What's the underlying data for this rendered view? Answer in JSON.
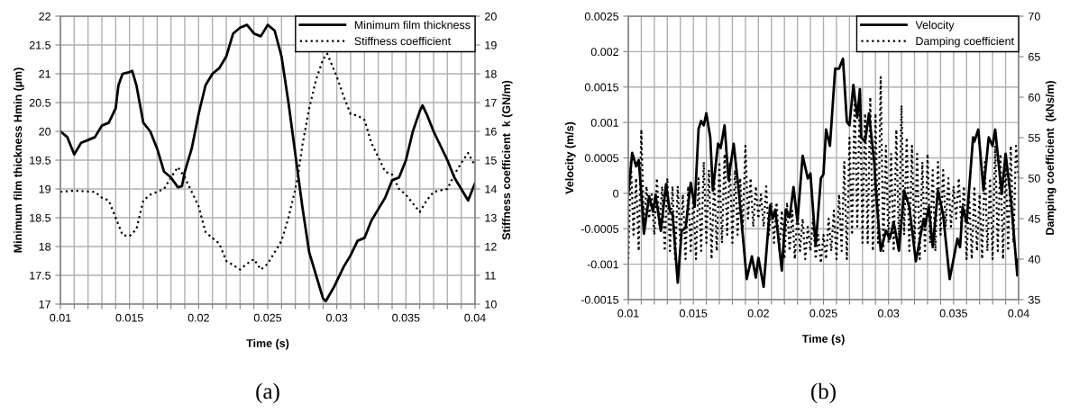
{
  "chart_data": [
    {
      "type": "line",
      "xlabel": "Time (s)",
      "ylabel": "Minimum film thickness Hmin (µm)",
      "y2label": "Stiffness coefficient  k (GN/m)",
      "annotations": [
        "(a)"
      ],
      "xlim": [
        0.01,
        0.04
      ],
      "xticks": [
        0.01,
        {
          "value": 0.011,
          "label": null
        },
        {
          "value": 0.012,
          "label": null
        },
        {
          "value": 0.013,
          "label": null
        },
        {
          "value": 0.014,
          "label": null
        },
        0.015,
        {
          "value": 0.016,
          "label": null
        },
        {
          "value": 0.017,
          "label": null
        },
        {
          "value": 0.018,
          "label": null
        },
        {
          "value": 0.019,
          "label": null
        },
        0.02,
        {
          "value": 0.021,
          "label": null
        },
        {
          "value": 0.022,
          "label": null
        },
        {
          "value": 0.023,
          "label": null
        },
        {
          "value": 0.024,
          "label": null
        },
        0.025,
        {
          "value": 0.026,
          "label": null
        },
        {
          "value": 0.027,
          "label": null
        },
        {
          "value": 0.028,
          "label": null
        },
        {
          "value": 0.029,
          "label": null
        },
        0.03,
        {
          "value": 0.031,
          "label": null
        },
        {
          "value": 0.032,
          "label": null
        },
        {
          "value": 0.033,
          "label": null
        },
        {
          "value": 0.034,
          "label": null
        },
        0.035,
        {
          "value": 0.036,
          "label": null
        },
        {
          "value": 0.037,
          "label": null
        },
        {
          "value": 0.038,
          "label": null
        },
        {
          "value": 0.039,
          "label": null
        },
        0.04
      ],
      "ylim": [
        17,
        22
      ],
      "yticks": [
        17,
        17.5,
        18,
        18.5,
        19,
        19.5,
        20,
        20.5,
        21,
        21.5,
        22
      ],
      "y2lim": [
        10,
        20
      ],
      "y2ticks": [
        10,
        11,
        12,
        13,
        14,
        15,
        16,
        17,
        18,
        19,
        20
      ],
      "grid": true,
      "legend": "top right",
      "series": [
        {
          "name": "Minimum film thickness",
          "color": "#000000",
          "line_style": "solid",
          "x": [
            0.01,
            0.0105,
            0.011,
            0.0115,
            0.012,
            0.0125,
            0.013,
            0.0135,
            0.014,
            0.0142,
            0.0145,
            0.015,
            0.0152,
            0.0155,
            0.016,
            0.0165,
            0.017,
            0.0175,
            0.018,
            0.0185,
            0.0188,
            0.019,
            0.0195,
            0.02,
            0.0205,
            0.021,
            0.0215,
            0.022,
            0.0225,
            0.023,
            0.0235,
            0.024,
            0.0245,
            0.025,
            0.0255,
            0.026,
            0.0265,
            0.027,
            0.0275,
            0.028,
            0.0285,
            0.029,
            0.0292,
            0.0298,
            0.03,
            0.0305,
            0.031,
            0.0315,
            0.032,
            0.0325,
            0.033,
            0.0335,
            0.034,
            0.0345,
            0.035,
            0.0355,
            0.036,
            0.0362,
            0.0365,
            0.037,
            0.0375,
            0.038,
            0.0385,
            0.039,
            0.0395,
            0.04
          ],
          "values": [
            20.0,
            19.9,
            19.6,
            19.8,
            19.85,
            19.9,
            20.1,
            20.15,
            20.4,
            20.8,
            21.0,
            21.03,
            21.05,
            20.8,
            20.15,
            20.0,
            19.7,
            19.3,
            19.2,
            19.03,
            19.05,
            19.3,
            19.7,
            20.3,
            20.8,
            21.0,
            21.1,
            21.3,
            21.7,
            21.8,
            21.85,
            21.7,
            21.65,
            21.85,
            21.75,
            21.3,
            20.5,
            19.6,
            18.7,
            17.9,
            17.5,
            17.1,
            17.05,
            17.3,
            17.4,
            17.65,
            17.85,
            18.1,
            18.15,
            18.45,
            18.65,
            18.85,
            19.15,
            19.2,
            19.5,
            20.0,
            20.35,
            20.45,
            20.3,
            20.0,
            19.75,
            19.5,
            19.2,
            19.0,
            18.8,
            19.1
          ]
        },
        {
          "name": "Stiffness coefficient",
          "color": "#000000",
          "line_style": "dotted",
          "axis": "y2",
          "x": [
            0.01,
            0.011,
            0.0125,
            0.013,
            0.0135,
            0.014,
            0.0145,
            0.015,
            0.0155,
            0.016,
            0.0165,
            0.017,
            0.0175,
            0.018,
            0.0185,
            0.019,
            0.0195,
            0.02,
            0.0205,
            0.021,
            0.0215,
            0.022,
            0.0225,
            0.023,
            0.0235,
            0.024,
            0.0245,
            0.025,
            0.026,
            0.0265,
            0.027,
            0.0272,
            0.0275,
            0.028,
            0.0285,
            0.029,
            0.0293,
            0.03,
            0.0305,
            0.031,
            0.0315,
            0.032,
            0.0325,
            0.033,
            0.0335,
            0.034,
            0.0345,
            0.035,
            0.0355,
            0.036,
            0.0365,
            0.037,
            0.0375,
            0.038,
            0.0385,
            0.039,
            0.0395,
            0.04
          ],
          "values": [
            13.9,
            13.94,
            13.9,
            13.7,
            13.6,
            13.0,
            12.4,
            12.36,
            12.6,
            13.6,
            13.8,
            13.9,
            14.0,
            14.4,
            14.76,
            14.4,
            13.9,
            13.4,
            12.5,
            12.3,
            12.1,
            11.5,
            11.36,
            11.2,
            11.4,
            11.56,
            11.2,
            11.4,
            12.2,
            13.0,
            14.0,
            14.5,
            15.5,
            16.8,
            17.8,
            18.5,
            18.7,
            17.9,
            17.2,
            16.6,
            16.55,
            16.4,
            15.6,
            15.1,
            14.6,
            14.5,
            14.0,
            13.8,
            13.5,
            13.2,
            13.6,
            13.9,
            13.95,
            14.0,
            14.5,
            14.9,
            15.25,
            14.8
          ]
        }
      ]
    },
    {
      "type": "line",
      "xlabel": "Time (s)",
      "ylabel": "Velocity (m/s)",
      "y2label": "Damping coefficient  (kNs/m)",
      "annotations": [
        "(b)"
      ],
      "xlim": [
        0.01,
        0.04
      ],
      "xticks": [
        0.01,
        {
          "value": 0.011,
          "label": null
        },
        {
          "value": 0.012,
          "label": null
        },
        {
          "value": 0.013,
          "label": null
        },
        {
          "value": 0.014,
          "label": null
        },
        0.015,
        {
          "value": 0.016,
          "label": null
        },
        {
          "value": 0.017,
          "label": null
        },
        {
          "value": 0.018,
          "label": null
        },
        {
          "value": 0.019,
          "label": null
        },
        0.02,
        {
          "value": 0.021,
          "label": null
        },
        {
          "value": 0.022,
          "label": null
        },
        {
          "value": 0.023,
          "label": null
        },
        {
          "value": 0.024,
          "label": null
        },
        0.025,
        {
          "value": 0.026,
          "label": null
        },
        {
          "value": 0.027,
          "label": null
        },
        {
          "value": 0.028,
          "label": null
        },
        {
          "value": 0.029,
          "label": null
        },
        0.03,
        {
          "value": 0.031,
          "label": null
        },
        {
          "value": 0.032,
          "label": null
        },
        {
          "value": 0.033,
          "label": null
        },
        {
          "value": 0.034,
          "label": null
        },
        0.035,
        {
          "value": 0.036,
          "label": null
        },
        {
          "value": 0.037,
          "label": null
        },
        {
          "value": 0.038,
          "label": null
        },
        {
          "value": 0.039,
          "label": null
        },
        0.04
      ],
      "ylim": [
        -0.0015,
        0.0025
      ],
      "yticks": [
        -0.0015,
        -0.001,
        -0.0005,
        0,
        0.0005,
        0.001,
        0.0015,
        0.002,
        0.0025
      ],
      "y2lim": [
        35,
        70
      ],
      "y2ticks": [
        35,
        40,
        45,
        50,
        55,
        60,
        65,
        70
      ],
      "grid": true,
      "legend": "top right",
      "series": [
        {
          "name": "Velocity",
          "color": "#000000",
          "line_style": "solid",
          "x": [
            0.01,
            0.0103,
            0.0106,
            0.0108,
            0.011,
            0.0112,
            0.0116,
            0.0119,
            0.0121,
            0.0125,
            0.0129,
            0.0132,
            0.0134,
            0.0138,
            0.0141,
            0.0144,
            0.0148,
            0.0151,
            0.0154,
            0.0156,
            0.0158,
            0.016,
            0.0163,
            0.0165,
            0.0169,
            0.0171,
            0.0174,
            0.0177,
            0.0181,
            0.0185,
            0.0191,
            0.0195,
            0.0198,
            0.02,
            0.0204,
            0.0209,
            0.0211,
            0.0213,
            0.0218,
            0.0221,
            0.0224,
            0.0227,
            0.023,
            0.0234,
            0.0238,
            0.024,
            0.0244,
            0.0248,
            0.025,
            0.0252,
            0.0255,
            0.0259,
            0.0262,
            0.0265,
            0.0268,
            0.027,
            0.0273,
            0.0276,
            0.0278,
            0.0279,
            0.0282,
            0.0285,
            0.0289,
            0.0291,
            0.0294,
            0.0298,
            0.0301,
            0.0304,
            0.0308,
            0.0312,
            0.0316,
            0.0321,
            0.0327,
            0.0328,
            0.0331,
            0.0334,
            0.0338,
            0.0342,
            0.0347,
            0.0353,
            0.0355,
            0.0357,
            0.036,
            0.0365,
            0.0366,
            0.0369,
            0.0373,
            0.0377,
            0.038,
            0.0382,
            0.0387,
            0.039,
            0.0394,
            0.0399,
            0.04
          ],
          "values": [
            0.0,
            0.00057,
            0.00038,
            0.00047,
            0.0,
            -0.00057,
            -4e-05,
            -0.00026,
            -2e-05,
            -0.00053,
            0.00013,
            -0.00026,
            -0.00028,
            -0.00126,
            -0.00053,
            -0.00049,
            0.00015,
            -0.00019,
            0.00091,
            0.00102,
            0.00096,
            0.00113,
            0.00079,
            4e-05,
            0.0007,
            0.00064,
            0.00096,
            0.00019,
            0.0007,
            2e-05,
            -0.00121,
            -0.00089,
            -0.00119,
            -0.00091,
            -0.00132,
            -0.00017,
            -0.00036,
            -0.00023,
            -0.00109,
            -0.00023,
            -0.00034,
            9e-05,
            -0.0004,
            0.00053,
            0.00021,
            0.00028,
            -0.00074,
            0.00021,
            0.00027,
            0.0009,
            0.00067,
            0.00176,
            0.00176,
            0.0019,
            0.00101,
            0.00096,
            0.00153,
            0.00107,
            0.00147,
            0.00079,
            0.00073,
            0.00113,
            0.00044,
            -0.00013,
            -0.00081,
            -0.00053,
            -0.00064,
            -0.00041,
            -0.00081,
            4e-05,
            -0.00019,
            -0.00096,
            -0.00036,
            -0.00047,
            -0.00019,
            -0.00076,
            4e-05,
            -0.0003,
            -0.00121,
            -0.00064,
            -0.00076,
            -0.00019,
            -0.00041,
            0.00079,
            0.00073,
            0.0009,
            4e-05,
            0.00079,
            0.00067,
            0.0009,
            -1e-05,
            0.00056,
            -7e-05,
            -0.00116,
            -0.00093
          ]
        },
        {
          "name": "Damping coefficient",
          "color": "#000000",
          "line_style": "dotted",
          "axis": "y2",
          "x": [
            0.01,
            0.0102,
            0.0104,
            0.0106,
            0.0108,
            0.011,
            0.0112,
            0.0114,
            0.0116,
            0.0118,
            0.012,
            0.0122,
            0.0124,
            0.0126,
            0.0128,
            0.013,
            0.0132,
            0.0134,
            0.0136,
            0.0138,
            0.014,
            0.0142,
            0.0144,
            0.0146,
            0.0148,
            0.015,
            0.0152,
            0.0154,
            0.0156,
            0.0158,
            0.016,
            0.0162,
            0.0164,
            0.0166,
            0.0168,
            0.017,
            0.0172,
            0.0174,
            0.0176,
            0.0178,
            0.018,
            0.0182,
            0.0184,
            0.0186,
            0.0188,
            0.019,
            0.0192,
            0.0194,
            0.0196,
            0.0198,
            0.02,
            0.0202,
            0.0204,
            0.0206,
            0.0208,
            0.021,
            0.0212,
            0.0214,
            0.0216,
            0.0218,
            0.022,
            0.0222,
            0.0224,
            0.0226,
            0.0228,
            0.023,
            0.0232,
            0.0234,
            0.0236,
            0.0238,
            0.024,
            0.0242,
            0.0244,
            0.0246,
            0.0248,
            0.025,
            0.0252,
            0.0254,
            0.0256,
            0.0258,
            0.026,
            0.0262,
            0.0264,
            0.0266,
            0.0268,
            0.027,
            0.0272,
            0.0274,
            0.0276,
            0.0278,
            0.028,
            0.0282,
            0.0284,
            0.0286,
            0.0288,
            0.029,
            0.0292,
            0.0294,
            0.0296,
            0.0298,
            0.03,
            0.0302,
            0.0304,
            0.0306,
            0.0308,
            0.031,
            0.0312,
            0.0314,
            0.0316,
            0.0318,
            0.032,
            0.0322,
            0.0324,
            0.0326,
            0.0328,
            0.033,
            0.0332,
            0.0334,
            0.0336,
            0.0338,
            0.034,
            0.0342,
            0.0344,
            0.0346,
            0.0348,
            0.035,
            0.0352,
            0.0354,
            0.0356,
            0.0358,
            0.036,
            0.0362,
            0.0364,
            0.0366,
            0.0368,
            0.037,
            0.0372,
            0.0374,
            0.0376,
            0.0378,
            0.038,
            0.0382,
            0.0384,
            0.0386,
            0.0388,
            0.039,
            0.0392,
            0.0394,
            0.0396,
            0.0398,
            0.04
          ],
          "values": [
            40,
            52,
            43,
            50,
            41,
            56,
            44,
            49,
            45,
            48,
            43,
            50,
            44,
            49,
            41,
            50,
            41,
            49,
            40,
            49,
            42,
            48,
            40,
            49,
            41,
            48,
            40,
            50,
            41,
            52,
            42,
            51,
            40,
            50,
            41,
            52,
            42,
            53,
            43,
            52,
            42,
            51,
            43,
            50,
            44,
            54,
            45,
            50,
            44,
            49,
            45,
            48,
            44,
            49,
            43,
            47,
            42,
            47,
            41,
            46,
            40,
            47,
            41,
            46,
            40,
            46,
            41,
            45,
            40,
            44,
            41,
            45,
            40,
            43,
            39.5,
            43,
            40,
            45,
            41,
            46,
            40,
            48,
            41,
            52,
            40,
            55,
            43,
            60,
            44,
            61,
            42,
            58,
            42,
            60,
            41,
            58,
            42,
            62.5,
            41,
            54,
            42,
            53,
            41,
            56,
            42,
            59,
            43,
            55,
            41,
            54,
            42,
            53,
            40,
            52,
            41,
            53,
            42,
            51,
            41,
            52,
            43,
            51,
            44,
            50,
            44,
            49,
            45,
            50,
            44,
            49,
            40,
            48,
            40,
            49,
            41,
            48,
            40,
            52,
            41,
            50,
            40,
            54,
            41,
            53,
            40,
            52,
            41,
            54,
            42,
            54,
            50
          ]
        }
      ]
    }
  ]
}
